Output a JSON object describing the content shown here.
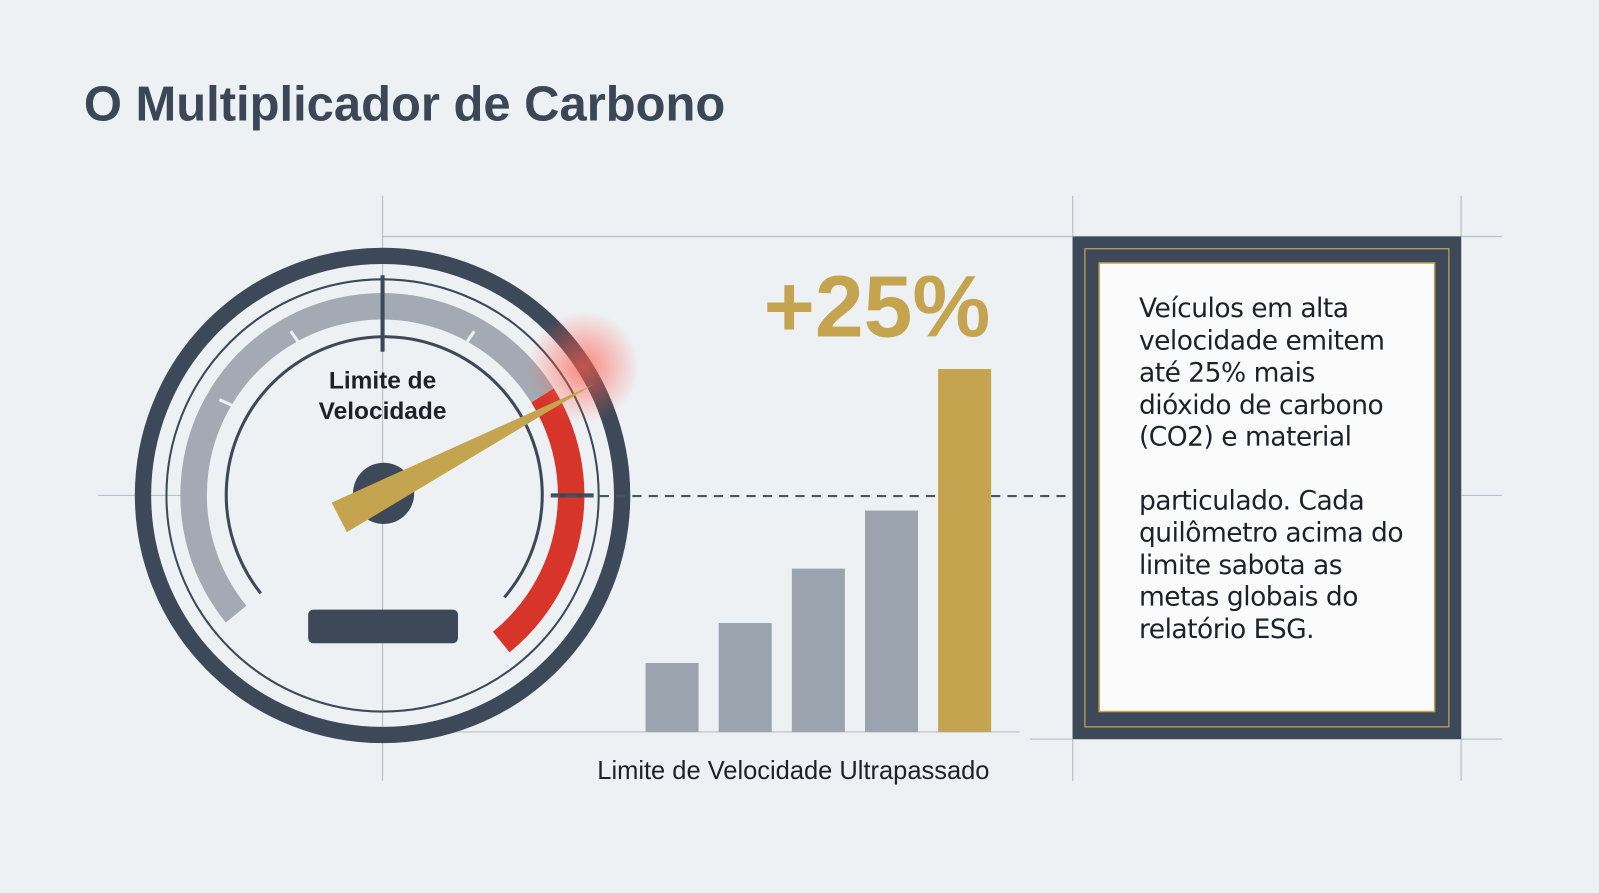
{
  "title": "O Multiplicador de Carbono",
  "gauge": {
    "label_lines": [
      "Limite de",
      "Velocidade"
    ]
  },
  "chart_data": {
    "type": "bar",
    "annotation": "+25%",
    "x_label": "Limite de Velocidade Ultrapassado",
    "values": [
      19,
      30,
      45,
      61,
      100
    ],
    "colors": [
      "#9aa3ae",
      "#9aa3ae",
      "#9aa3ae",
      "#9aa3ae",
      "#c5a450"
    ],
    "ylim": [
      0,
      100
    ],
    "reference_line": 65
  },
  "text_box": {
    "paragraphs": [
      "Veículos em alta velocidade emitem até 25% mais dióxido de carbono (CO2) e material",
      "particulado. Cada quilômetro acima do limite sabota as metas globais do relatório ESG."
    ]
  }
}
